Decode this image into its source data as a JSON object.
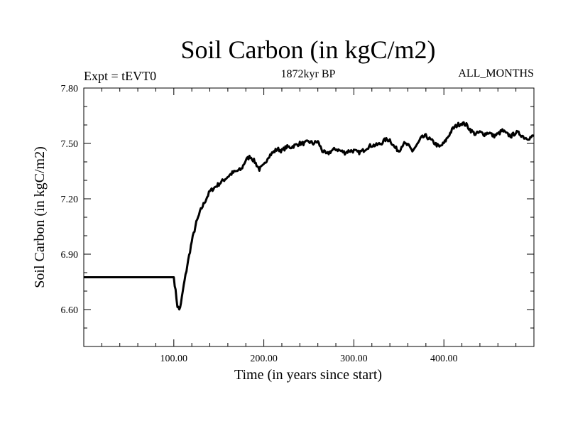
{
  "chart_data": {
    "type": "line",
    "title": "Soil Carbon (in kgC/m2)",
    "subtitle_left": "Expt = tEVT0",
    "subtitle_center": "1872kyr BP",
    "subtitle_right": "ALL_MONTHS",
    "xlabel": "Time (in years since start)",
    "ylabel": "Soil Carbon (in kgC/m2)",
    "xlim": [
      0,
      500
    ],
    "ylim": [
      6.4,
      7.8
    ],
    "x_ticks": [
      100,
      200,
      300,
      400
    ],
    "x_tick_labels": [
      "100.00",
      "200.00",
      "300.00",
      "400.00"
    ],
    "y_ticks": [
      6.6,
      6.9,
      7.2,
      7.5,
      7.8
    ],
    "y_tick_labels": [
      "6.60",
      "6.90",
      "7.20",
      "7.50",
      "7.80"
    ],
    "series": [
      {
        "name": "Soil Carbon",
        "x": [
          0,
          100,
          102,
          104,
          106,
          108,
          110,
          115,
          120,
          125,
          130,
          135,
          140,
          145,
          150,
          155,
          160,
          165,
          170,
          175,
          180,
          185,
          190,
          195,
          200,
          205,
          210,
          215,
          220,
          225,
          230,
          235,
          240,
          245,
          250,
          255,
          260,
          265,
          270,
          275,
          280,
          285,
          290,
          295,
          300,
          305,
          310,
          315,
          320,
          325,
          330,
          335,
          340,
          345,
          350,
          355,
          360,
          365,
          370,
          375,
          380,
          385,
          390,
          395,
          400,
          405,
          410,
          415,
          420,
          425,
          430,
          435,
          440,
          445,
          450,
          455,
          460,
          465,
          470,
          475,
          480,
          485,
          490,
          495,
          500
        ],
        "values": [
          6.775,
          6.775,
          6.7,
          6.62,
          6.6,
          6.63,
          6.7,
          6.84,
          6.97,
          7.07,
          7.14,
          7.19,
          7.24,
          7.26,
          7.28,
          7.3,
          7.32,
          7.34,
          7.35,
          7.36,
          7.41,
          7.43,
          7.4,
          7.36,
          7.38,
          7.43,
          7.45,
          7.47,
          7.46,
          7.48,
          7.48,
          7.49,
          7.5,
          7.5,
          7.51,
          7.5,
          7.51,
          7.46,
          7.44,
          7.46,
          7.47,
          7.46,
          7.45,
          7.46,
          7.46,
          7.45,
          7.46,
          7.48,
          7.49,
          7.49,
          7.5,
          7.52,
          7.52,
          7.48,
          7.46,
          7.5,
          7.49,
          7.46,
          7.49,
          7.53,
          7.54,
          7.52,
          7.5,
          7.48,
          7.5,
          7.54,
          7.58,
          7.6,
          7.61,
          7.6,
          7.57,
          7.55,
          7.56,
          7.55,
          7.56,
          7.54,
          7.55,
          7.57,
          7.55,
          7.54,
          7.56,
          7.55,
          7.53,
          7.53,
          7.54
        ]
      }
    ]
  }
}
